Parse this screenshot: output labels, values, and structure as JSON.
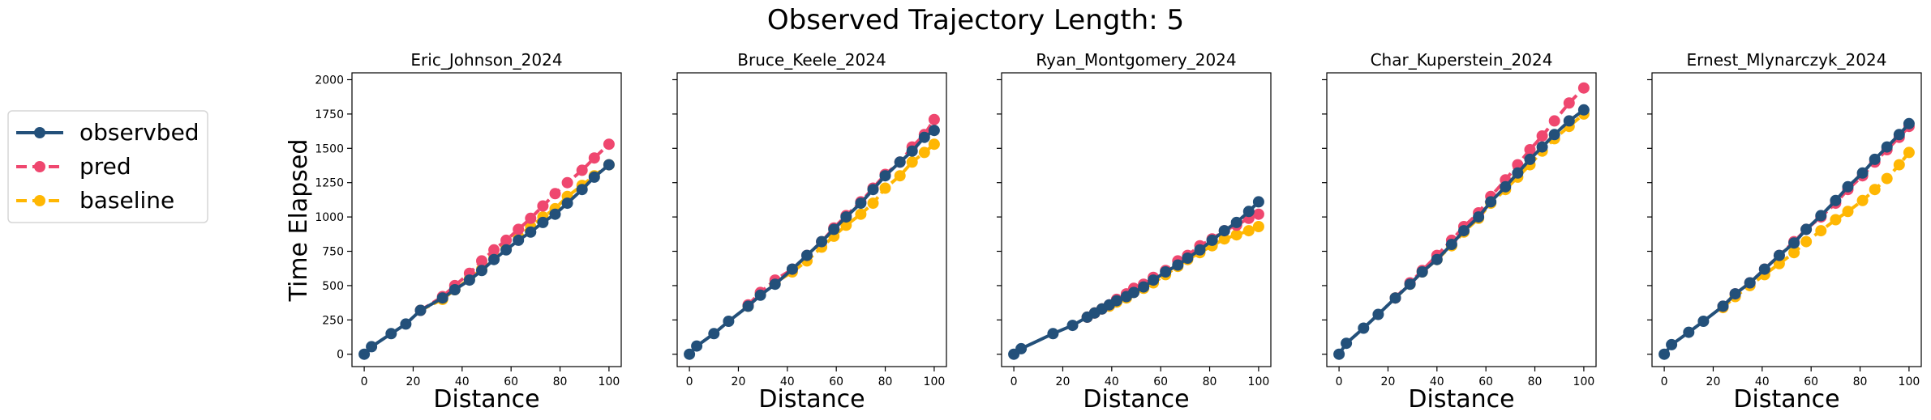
{
  "figure": {
    "suptitle": "Observed Trajectory Length: 5",
    "ylabel": "Time Elapsed",
    "xlabel": "Distance"
  },
  "legend": {
    "placement": "left",
    "entries": [
      {
        "label": "observbed",
        "color": "#23507a",
        "linestyle": "solid"
      },
      {
        "label": "pred",
        "color": "#ef476f",
        "linestyle": "dashed"
      },
      {
        "label": "baseline",
        "color": "#ffb703",
        "linestyle": "dashed"
      }
    ]
  },
  "chart_data": [
    {
      "type": "line",
      "title": "Eric_Johnson_2024",
      "xlabel": "Distance",
      "ylabel": "Time Elapsed",
      "xlim": [
        -5,
        105
      ],
      "ylim": [
        -90,
        2050
      ],
      "xticks": [
        0,
        20,
        40,
        60,
        80,
        100
      ],
      "yticks": [
        0,
        250,
        500,
        750,
        1000,
        1250,
        1500,
        1750,
        2000
      ],
      "series": [
        {
          "name": "observbed",
          "x": [
            0,
            3,
            11,
            17,
            23,
            32,
            37,
            43,
            48,
            53,
            58,
            63,
            68,
            73,
            78,
            83,
            89,
            94,
            100
          ],
          "y": [
            0,
            55,
            150,
            220,
            320,
            410,
            470,
            540,
            610,
            690,
            760,
            830,
            890,
            960,
            1020,
            1100,
            1200,
            1290,
            1380
          ]
        },
        {
          "name": "pred",
          "x": [
            23,
            32,
            37,
            43,
            48,
            53,
            58,
            63,
            68,
            73,
            78,
            83,
            89,
            94,
            100
          ],
          "y": [
            320,
            420,
            500,
            590,
            680,
            760,
            830,
            910,
            990,
            1080,
            1170,
            1250,
            1340,
            1430,
            1530
          ]
        },
        {
          "name": "baseline",
          "x": [
            23,
            32,
            37,
            43,
            48,
            53,
            58,
            63,
            68,
            73,
            78,
            83,
            89,
            94,
            100
          ],
          "y": [
            320,
            400,
            470,
            550,
            620,
            700,
            770,
            860,
            930,
            1000,
            1060,
            1150,
            1230,
            1300,
            1380
          ]
        }
      ]
    },
    {
      "type": "line",
      "title": "Bruce_Keele_2024",
      "xlabel": "Distance",
      "xlim": [
        -5,
        105
      ],
      "ylim": [
        -90,
        2050
      ],
      "xticks": [
        0,
        20,
        40,
        60,
        80,
        100
      ],
      "series": [
        {
          "name": "observbed",
          "x": [
            0,
            3,
            10,
            16,
            24,
            29,
            35,
            42,
            48,
            54,
            59,
            64,
            70,
            75,
            80,
            86,
            91,
            96,
            100
          ],
          "y": [
            0,
            60,
            150,
            240,
            350,
            430,
            510,
            620,
            720,
            820,
            910,
            1000,
            1100,
            1200,
            1300,
            1400,
            1480,
            1580,
            1630
          ]
        },
        {
          "name": "pred",
          "x": [
            24,
            29,
            35,
            42,
            48,
            54,
            59,
            64,
            70,
            75,
            80,
            86,
            91,
            96,
            100
          ],
          "y": [
            360,
            450,
            540,
            620,
            720,
            820,
            920,
            1010,
            1110,
            1210,
            1310,
            1400,
            1510,
            1600,
            1710
          ]
        },
        {
          "name": "baseline",
          "x": [
            24,
            29,
            35,
            42,
            48,
            54,
            59,
            64,
            70,
            75,
            80,
            86,
            91,
            96,
            100
          ],
          "y": [
            350,
            440,
            520,
            600,
            680,
            780,
            860,
            940,
            1020,
            1100,
            1210,
            1300,
            1400,
            1470,
            1530
          ]
        }
      ]
    },
    {
      "type": "line",
      "title": "Ryan_Montgomery_2024",
      "xlabel": "Distance",
      "xlim": [
        -5,
        105
      ],
      "ylim": [
        -90,
        2050
      ],
      "xticks": [
        0,
        20,
        40,
        60,
        80,
        100
      ],
      "series": [
        {
          "name": "observbed",
          "x": [
            0,
            3,
            16,
            24,
            30,
            33,
            36,
            39,
            42,
            46,
            49,
            53,
            57,
            62,
            67,
            71,
            76,
            81,
            86,
            91,
            96,
            100
          ],
          "y": [
            0,
            40,
            150,
            210,
            270,
            300,
            330,
            360,
            390,
            420,
            450,
            490,
            540,
            600,
            650,
            700,
            760,
            830,
            900,
            960,
            1040,
            1110
          ]
        },
        {
          "name": "pred",
          "x": [
            30,
            33,
            36,
            39,
            42,
            46,
            49,
            53,
            57,
            62,
            67,
            71,
            76,
            81,
            86,
            91,
            96,
            100
          ],
          "y": [
            270,
            300,
            330,
            360,
            400,
            440,
            480,
            510,
            560,
            610,
            680,
            720,
            790,
            840,
            900,
            940,
            990,
            1020
          ]
        },
        {
          "name": "baseline",
          "x": [
            30,
            33,
            36,
            39,
            42,
            46,
            49,
            53,
            57,
            62,
            67,
            71,
            76,
            81,
            86,
            91,
            96,
            100
          ],
          "y": [
            270,
            300,
            330,
            350,
            380,
            410,
            450,
            480,
            520,
            580,
            640,
            690,
            740,
            790,
            840,
            870,
            900,
            930
          ]
        }
      ]
    },
    {
      "type": "line",
      "title": "Char_Kuperstein_2024",
      "xlabel": "Distance",
      "xlim": [
        -5,
        105
      ],
      "ylim": [
        -90,
        2050
      ],
      "xticks": [
        0,
        20,
        40,
        60,
        80,
        100
      ],
      "series": [
        {
          "name": "observbed",
          "x": [
            0,
            3,
            10,
            16,
            23,
            29,
            34,
            40,
            46,
            51,
            57,
            62,
            68,
            73,
            78,
            83,
            88,
            94,
            100
          ],
          "y": [
            0,
            80,
            190,
            290,
            410,
            510,
            600,
            690,
            800,
            900,
            1000,
            1110,
            1220,
            1320,
            1420,
            1510,
            1600,
            1700,
            1780
          ]
        },
        {
          "name": "pred",
          "x": [
            23,
            29,
            34,
            40,
            46,
            51,
            57,
            62,
            68,
            73,
            78,
            83,
            88,
            94,
            100
          ],
          "y": [
            410,
            520,
            610,
            720,
            830,
            930,
            1030,
            1150,
            1270,
            1380,
            1490,
            1590,
            1700,
            1830,
            1940
          ]
        },
        {
          "name": "baseline",
          "x": [
            23,
            29,
            34,
            40,
            46,
            51,
            57,
            62,
            68,
            73,
            78,
            83,
            88,
            94,
            100
          ],
          "y": [
            410,
            510,
            600,
            690,
            790,
            890,
            990,
            1100,
            1200,
            1290,
            1380,
            1480,
            1570,
            1660,
            1750
          ]
        }
      ]
    },
    {
      "type": "line",
      "title": "Ernest_Mlynarczyk_2024",
      "xlabel": "Distance",
      "xlim": [
        -5,
        105
      ],
      "ylim": [
        -90,
        2050
      ],
      "xticks": [
        0,
        20,
        40,
        60,
        80,
        100
      ],
      "series": [
        {
          "name": "observbed",
          "x": [
            0,
            3,
            10,
            16,
            24,
            29,
            35,
            41,
            47,
            53,
            58,
            64,
            70,
            75,
            81,
            86,
            91,
            96,
            100
          ],
          "y": [
            0,
            70,
            160,
            240,
            350,
            440,
            520,
            620,
            720,
            810,
            910,
            1010,
            1120,
            1220,
            1320,
            1420,
            1510,
            1600,
            1680
          ]
        },
        {
          "name": "pred",
          "x": [
            24,
            29,
            35,
            41,
            47,
            53,
            58,
            64,
            70,
            75,
            81,
            86,
            91,
            96,
            100
          ],
          "y": [
            350,
            440,
            520,
            620,
            720,
            820,
            910,
            1000,
            1100,
            1200,
            1300,
            1400,
            1490,
            1580,
            1660
          ]
        },
        {
          "name": "baseline",
          "x": [
            24,
            29,
            35,
            41,
            47,
            53,
            58,
            64,
            70,
            75,
            81,
            86,
            91,
            96,
            100
          ],
          "y": [
            340,
            420,
            500,
            580,
            660,
            740,
            820,
            900,
            980,
            1040,
            1120,
            1200,
            1280,
            1380,
            1470
          ]
        }
      ]
    }
  ]
}
